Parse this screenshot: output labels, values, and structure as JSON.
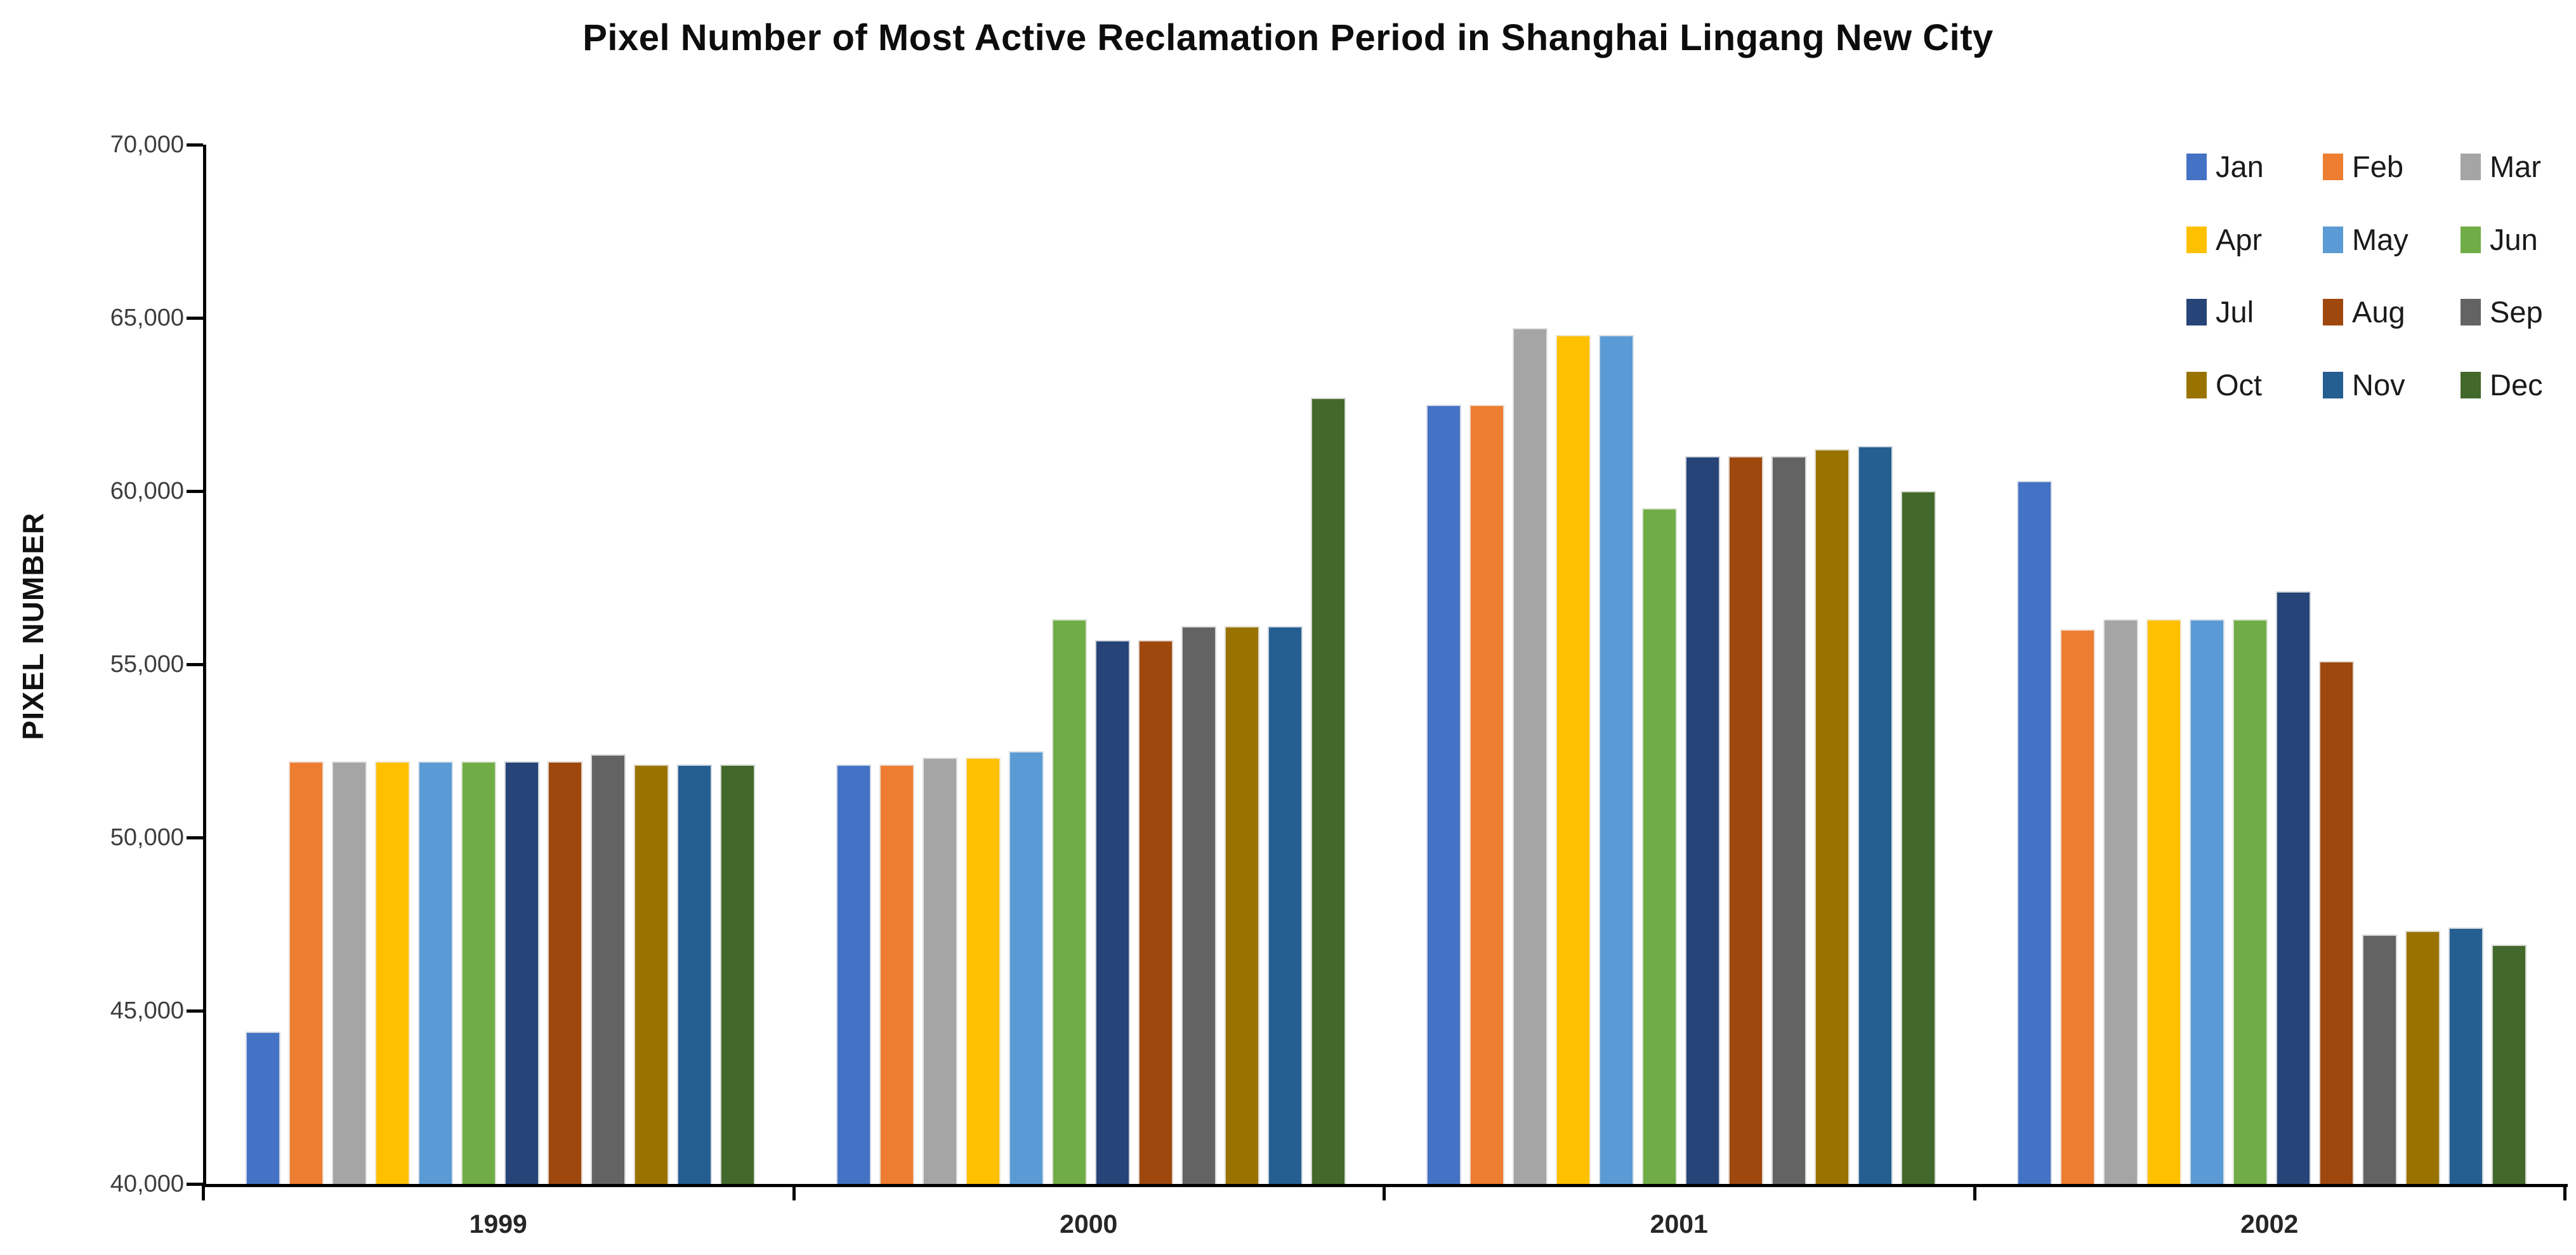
{
  "title": "Pixel Number of Most Active Reclamation Period in Shanghai Lingang New City",
  "y_axis": {
    "title": "PIXEL NUMBER",
    "tick_labels": [
      "70,000",
      "65,000",
      "60,000",
      "55,000",
      "50,000",
      "45,000",
      "40,000"
    ]
  },
  "x_axis": {
    "categories": [
      "1999",
      "2000",
      "2001",
      "2002"
    ]
  },
  "legend": [
    {
      "label": "Jan",
      "color": "#4472C4"
    },
    {
      "label": "Feb",
      "color": "#ED7D31"
    },
    {
      "label": "Mar",
      "color": "#A5A5A5"
    },
    {
      "label": "Apr",
      "color": "#FFC000"
    },
    {
      "label": "May",
      "color": "#5B9BD5"
    },
    {
      "label": "Jun",
      "color": "#70AD47"
    },
    {
      "label": "Jul",
      "color": "#264478"
    },
    {
      "label": "Aug",
      "color": "#9E480E"
    },
    {
      "label": "Sep",
      "color": "#636363"
    },
    {
      "label": "Oct",
      "color": "#997300"
    },
    {
      "label": "Nov",
      "color": "#255E91"
    },
    {
      "label": "Dec",
      "color": "#43682B"
    }
  ],
  "chart_data": {
    "type": "bar",
    "title": "Pixel Number of Most Active Reclamation Period in Shanghai Lingang New City",
    "xlabel": "",
    "ylabel": "PIXEL NUMBER",
    "ylim": [
      40000,
      70000
    ],
    "ytick_step": 5000,
    "grid": false,
    "legend_position": "top-right",
    "categories": [
      "1999",
      "2000",
      "2001",
      "2002"
    ],
    "series": [
      {
        "name": "Jan",
        "color": "#4472C4",
        "values": [
          44400,
          52100,
          62500,
          60300
        ]
      },
      {
        "name": "Feb",
        "color": "#ED7D31",
        "values": [
          52200,
          52100,
          62500,
          56000
        ]
      },
      {
        "name": "Mar",
        "color": "#A5A5A5",
        "values": [
          52200,
          52300,
          64700,
          56300
        ]
      },
      {
        "name": "Apr",
        "color": "#FFC000",
        "values": [
          52200,
          52300,
          64500,
          56300
        ]
      },
      {
        "name": "May",
        "color": "#5B9BD5",
        "values": [
          52200,
          52500,
          64500,
          56300
        ]
      },
      {
        "name": "Jun",
        "color": "#70AD47",
        "values": [
          52200,
          56300,
          59500,
          56300
        ]
      },
      {
        "name": "Jul",
        "color": "#264478",
        "values": [
          52200,
          55700,
          61000,
          57100
        ]
      },
      {
        "name": "Aug",
        "color": "#9E480E",
        "values": [
          52200,
          55700,
          61000,
          55100
        ]
      },
      {
        "name": "Sep",
        "color": "#636363",
        "values": [
          52400,
          56100,
          61000,
          47200
        ]
      },
      {
        "name": "Oct",
        "color": "#997300",
        "values": [
          52100,
          56100,
          61200,
          47300
        ]
      },
      {
        "name": "Nov",
        "color": "#255E91",
        "values": [
          52100,
          56100,
          61300,
          47400
        ]
      },
      {
        "name": "Dec",
        "color": "#43682B",
        "values": [
          52100,
          62700,
          60000,
          46900
        ]
      }
    ]
  }
}
